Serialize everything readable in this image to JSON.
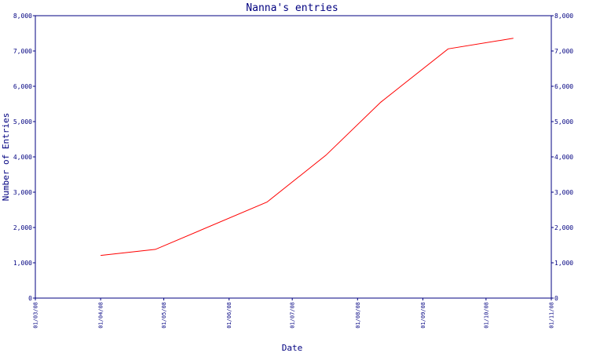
{
  "chart_data": {
    "type": "line",
    "title": "Nanna's entries",
    "xlabel": "Date",
    "ylabel": "Number of Entries",
    "ylim": [
      0,
      8000
    ],
    "yticks": [
      0,
      1000,
      2000,
      3000,
      4000,
      5000,
      6000,
      7000,
      8000
    ],
    "ytick_labels": [
      "0",
      "1,000",
      "2,000",
      "3,000",
      "4,000",
      "5,000",
      "6,000",
      "7,000",
      "8,000"
    ],
    "xlim": [
      "2008-03-01",
      "2008-11-01"
    ],
    "xticks": [
      "2008-03-01",
      "2008-04-01",
      "2008-05-01",
      "2008-06-01",
      "2008-07-01",
      "2008-08-01",
      "2008-09-01",
      "2008-10-01",
      "2008-11-01"
    ],
    "xtick_labels": [
      "01/03/08",
      "01/04/08",
      "01/05/08",
      "01/06/08",
      "01/07/08",
      "01/08/08",
      "01/09/08",
      "01/10/08",
      "01/11/08"
    ],
    "grid": false,
    "right_axis_mirrors_left": true,
    "series": [
      {
        "color": "#ff0000",
        "x": [
          "2008-04-01",
          "2008-04-27",
          "2008-06-19",
          "2008-07-17",
          "2008-08-12",
          "2008-09-13",
          "2008-10-14"
        ],
        "y": [
          1210,
          1380,
          2720,
          4050,
          5550,
          7060,
          7360
        ]
      }
    ]
  }
}
